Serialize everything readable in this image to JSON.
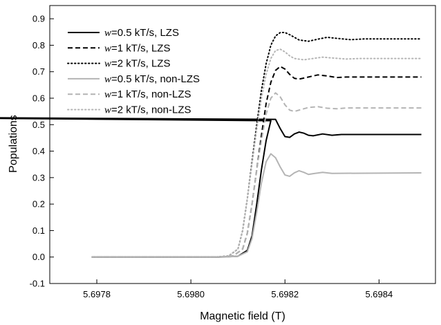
{
  "chart_data": {
    "type": "line",
    "xlabel": "Magnetic field (T)",
    "ylabel": "Populations",
    "xlim": [
      5.6977,
      5.69852
    ],
    "ylim": [
      -0.1,
      0.95
    ],
    "x_ticks": [
      5.6978,
      5.698,
      5.6982,
      5.6984
    ],
    "x_tick_labels": [
      "5.6978",
      "5.6980",
      "5.6982",
      "5.6984"
    ],
    "y_ticks": [
      -0.1,
      0.0,
      0.1,
      0.2,
      0.3,
      0.4,
      0.5,
      0.6,
      0.7,
      0.8,
      0.9
    ],
    "y_tick_labels": [
      "-0.1",
      "0.0",
      "0.1",
      "0.2",
      "0.3",
      "0.4",
      "0.5",
      "0.6",
      "0.7",
      "0.8",
      "0.9"
    ],
    "grid": false,
    "legend_position": "top-left",
    "series": [
      {
        "name": "w=0.5 kT/s, LZS",
        "italic_prefix": "w",
        "rest": "=0.5 kT/s, LZS",
        "color": "#000000",
        "dash": "solid",
        "points": [
          [
            5.69779,
            0.0
          ],
          [
            5.69806,
            0.0
          ],
          [
            5.6981,
            0.003
          ],
          [
            5.69812,
            0.025
          ],
          [
            5.69813,
            0.08
          ],
          [
            5.69814,
            0.2
          ],
          [
            5.69815,
            0.33
          ],
          [
            5.69816,
            0.44
          ],
          [
            5.69817,
            0.515
          ],
          [
            5.697178,
            0.53
          ],
          [
            5.69818,
            0.52
          ],
          [
            5.69819,
            0.485
          ],
          [
            5.6982,
            0.455
          ],
          [
            5.69821,
            0.452
          ],
          [
            5.69822,
            0.465
          ],
          [
            5.69823,
            0.472
          ],
          [
            5.69824,
            0.468
          ],
          [
            5.69825,
            0.46
          ],
          [
            5.69826,
            0.458
          ],
          [
            5.69828,
            0.465
          ],
          [
            5.6983,
            0.46
          ],
          [
            5.69832,
            0.463
          ],
          [
            5.69849,
            0.463
          ]
        ]
      },
      {
        "name": "w=1 kT/s, LZS",
        "italic_prefix": "w",
        "rest": "=1 kT/s, LZS",
        "color": "#000000",
        "dash": "dashed",
        "points": [
          [
            5.69779,
            0.0
          ],
          [
            5.69806,
            0.0
          ],
          [
            5.69809,
            0.004
          ],
          [
            5.69811,
            0.03
          ],
          [
            5.69812,
            0.09
          ],
          [
            5.69813,
            0.2
          ],
          [
            5.69814,
            0.33
          ],
          [
            5.69815,
            0.46
          ],
          [
            5.69816,
            0.58
          ],
          [
            5.69817,
            0.66
          ],
          [
            5.69818,
            0.705
          ],
          [
            5.69819,
            0.72
          ],
          [
            5.6982,
            0.71
          ],
          [
            5.69821,
            0.69
          ],
          [
            5.69822,
            0.675
          ],
          [
            5.69823,
            0.672
          ],
          [
            5.69825,
            0.68
          ],
          [
            5.69827,
            0.688
          ],
          [
            5.69829,
            0.684
          ],
          [
            5.69831,
            0.678
          ],
          [
            5.69833,
            0.68
          ],
          [
            5.69849,
            0.68
          ]
        ]
      },
      {
        "name": "w=2 kT/s, LZS",
        "italic_prefix": "w",
        "rest": "=2 kT/s, LZS",
        "color": "#000000",
        "dash": "dotted",
        "points": [
          [
            5.69779,
            0.0
          ],
          [
            5.69805,
            0.0
          ],
          [
            5.69808,
            0.004
          ],
          [
            5.6981,
            0.03
          ],
          [
            5.69811,
            0.1
          ],
          [
            5.69812,
            0.22
          ],
          [
            5.69813,
            0.36
          ],
          [
            5.69814,
            0.5
          ],
          [
            5.69815,
            0.63
          ],
          [
            5.69816,
            0.73
          ],
          [
            5.69817,
            0.8
          ],
          [
            5.69818,
            0.835
          ],
          [
            5.69819,
            0.848
          ],
          [
            5.6982,
            0.848
          ],
          [
            5.69821,
            0.84
          ],
          [
            5.69822,
            0.83
          ],
          [
            5.69823,
            0.82
          ],
          [
            5.69825,
            0.815
          ],
          [
            5.69827,
            0.823
          ],
          [
            5.69829,
            0.83
          ],
          [
            5.69831,
            0.826
          ],
          [
            5.69834,
            0.821
          ],
          [
            5.69837,
            0.824
          ],
          [
            5.69849,
            0.824
          ]
        ]
      },
      {
        "name": "w=0.5 kT/s, non-LZS",
        "italic_prefix": "w",
        "rest": "=0.5 kT/s, non-LZS",
        "color": "#b4b4b4",
        "dash": "solid",
        "points": [
          [
            5.69779,
            0.0
          ],
          [
            5.69807,
            0.0
          ],
          [
            5.6981,
            0.003
          ],
          [
            5.69812,
            0.02
          ],
          [
            5.69813,
            0.07
          ],
          [
            5.69814,
            0.17
          ],
          [
            5.69815,
            0.28
          ],
          [
            5.69816,
            0.36
          ],
          [
            5.69817,
            0.39
          ],
          [
            5.69818,
            0.375
          ],
          [
            5.69819,
            0.34
          ],
          [
            5.6982,
            0.31
          ],
          [
            5.69821,
            0.305
          ],
          [
            5.69822,
            0.318
          ],
          [
            5.69823,
            0.326
          ],
          [
            5.69824,
            0.32
          ],
          [
            5.69825,
            0.312
          ],
          [
            5.69826,
            0.315
          ],
          [
            5.69828,
            0.32
          ],
          [
            5.6983,
            0.316
          ],
          [
            5.69849,
            0.318
          ]
        ]
      },
      {
        "name": "w=1 kT/s, non-LZS",
        "italic_prefix": "w",
        "rest": "=1 kT/s, non-LZS",
        "color": "#b4b4b4",
        "dash": "dashed",
        "points": [
          [
            5.69779,
            0.0
          ],
          [
            5.69806,
            0.0
          ],
          [
            5.69809,
            0.004
          ],
          [
            5.69811,
            0.03
          ],
          [
            5.69812,
            0.09
          ],
          [
            5.69813,
            0.2
          ],
          [
            5.69814,
            0.33
          ],
          [
            5.69815,
            0.44
          ],
          [
            5.69816,
            0.54
          ],
          [
            5.69817,
            0.6
          ],
          [
            5.69818,
            0.62
          ],
          [
            5.69819,
            0.605
          ],
          [
            5.6982,
            0.575
          ],
          [
            5.69821,
            0.555
          ],
          [
            5.69822,
            0.55
          ],
          [
            5.69823,
            0.555
          ],
          [
            5.69825,
            0.565
          ],
          [
            5.69827,
            0.568
          ],
          [
            5.69829,
            0.562
          ],
          [
            5.69831,
            0.56
          ],
          [
            5.69833,
            0.563
          ],
          [
            5.69849,
            0.563
          ]
        ]
      },
      {
        "name": "w=2 kT/s, non-LZS",
        "italic_prefix": "w",
        "rest": "=2 kT/s, non-LZS",
        "color": "#b4b4b4",
        "dash": "dotted",
        "points": [
          [
            5.69779,
            0.0
          ],
          [
            5.69805,
            0.0
          ],
          [
            5.69808,
            0.004
          ],
          [
            5.6981,
            0.03
          ],
          [
            5.69811,
            0.1
          ],
          [
            5.69812,
            0.22
          ],
          [
            5.69813,
            0.35
          ],
          [
            5.69814,
            0.48
          ],
          [
            5.69815,
            0.6
          ],
          [
            5.69816,
            0.69
          ],
          [
            5.69817,
            0.75
          ],
          [
            5.69818,
            0.78
          ],
          [
            5.69819,
            0.785
          ],
          [
            5.6982,
            0.775
          ],
          [
            5.69821,
            0.76
          ],
          [
            5.69822,
            0.75
          ],
          [
            5.69824,
            0.745
          ],
          [
            5.69826,
            0.75
          ],
          [
            5.69828,
            0.755
          ],
          [
            5.6983,
            0.752
          ],
          [
            5.69833,
            0.748
          ],
          [
            5.69836,
            0.75
          ],
          [
            5.69849,
            0.75
          ]
        ]
      }
    ]
  }
}
